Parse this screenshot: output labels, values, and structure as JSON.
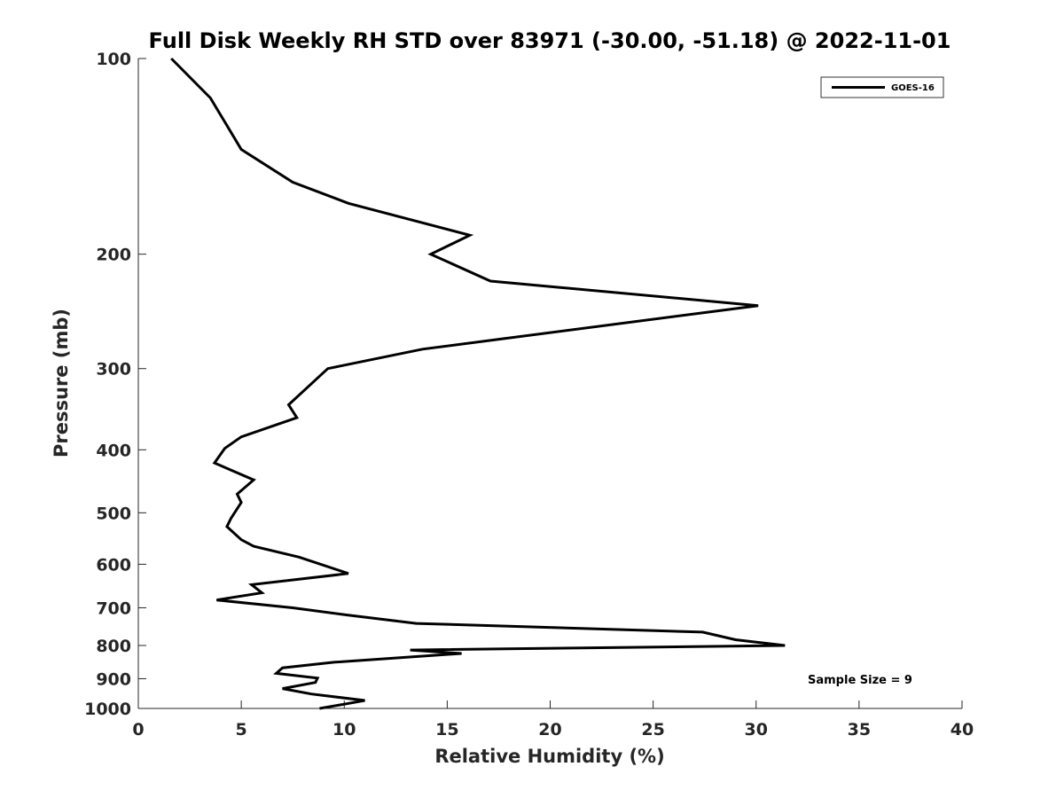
{
  "chart_data": {
    "type": "line",
    "title": "Full Disk Weekly RH STD over 83971 (-30.00, -51.18) @ 2022-11-01",
    "xlabel": "Relative Humidity (%)",
    "ylabel": "Pressure (mb)",
    "xlim": [
      0,
      40
    ],
    "ylim": [
      100,
      1000
    ],
    "y_scale": "log",
    "y_reversed": true,
    "grid": false,
    "legend_position": "top-right",
    "x_ticks": [
      0,
      5,
      10,
      15,
      20,
      25,
      30,
      35,
      40
    ],
    "y_ticks": [
      100,
      200,
      300,
      400,
      500,
      600,
      700,
      800,
      900,
      1000
    ],
    "series": [
      {
        "name": "GOES-16",
        "color": "#000000",
        "points": [
          [
            1.6,
            100
          ],
          [
            3.5,
            115
          ],
          [
            5.0,
            138
          ],
          [
            7.5,
            155
          ],
          [
            10.2,
            167
          ],
          [
            16.1,
            187
          ],
          [
            14.2,
            200
          ],
          [
            17.1,
            220
          ],
          [
            30.1,
            240
          ],
          [
            13.8,
            280
          ],
          [
            9.2,
            300
          ],
          [
            7.3,
            341
          ],
          [
            7.7,
            357
          ],
          [
            5.0,
            382
          ],
          [
            4.2,
            398
          ],
          [
            3.7,
            419
          ],
          [
            5.6,
            445
          ],
          [
            4.8,
            468
          ],
          [
            5.0,
            482
          ],
          [
            4.5,
            510
          ],
          [
            4.3,
            525
          ],
          [
            5.0,
            550
          ],
          [
            5.6,
            563
          ],
          [
            7.8,
            585
          ],
          [
            10.2,
            620
          ],
          [
            5.5,
            645
          ],
          [
            6.0,
            664
          ],
          [
            3.8,
            681
          ],
          [
            7.5,
            700
          ],
          [
            10.1,
            718
          ],
          [
            13.5,
            740
          ],
          [
            27.4,
            763
          ],
          [
            29.0,
            784
          ],
          [
            31.4,
            800
          ],
          [
            13.2,
            813
          ],
          [
            15.7,
            823
          ],
          [
            9.5,
            849
          ],
          [
            7.0,
            866
          ],
          [
            6.7,
            883
          ],
          [
            8.7,
            898
          ],
          [
            8.6,
            912
          ],
          [
            7.0,
            932
          ],
          [
            8.4,
            950
          ],
          [
            11.0,
            972
          ],
          [
            10.0,
            985
          ],
          [
            8.8,
            1000
          ]
        ]
      }
    ],
    "annotations": [
      "Sample Size = 9"
    ]
  }
}
